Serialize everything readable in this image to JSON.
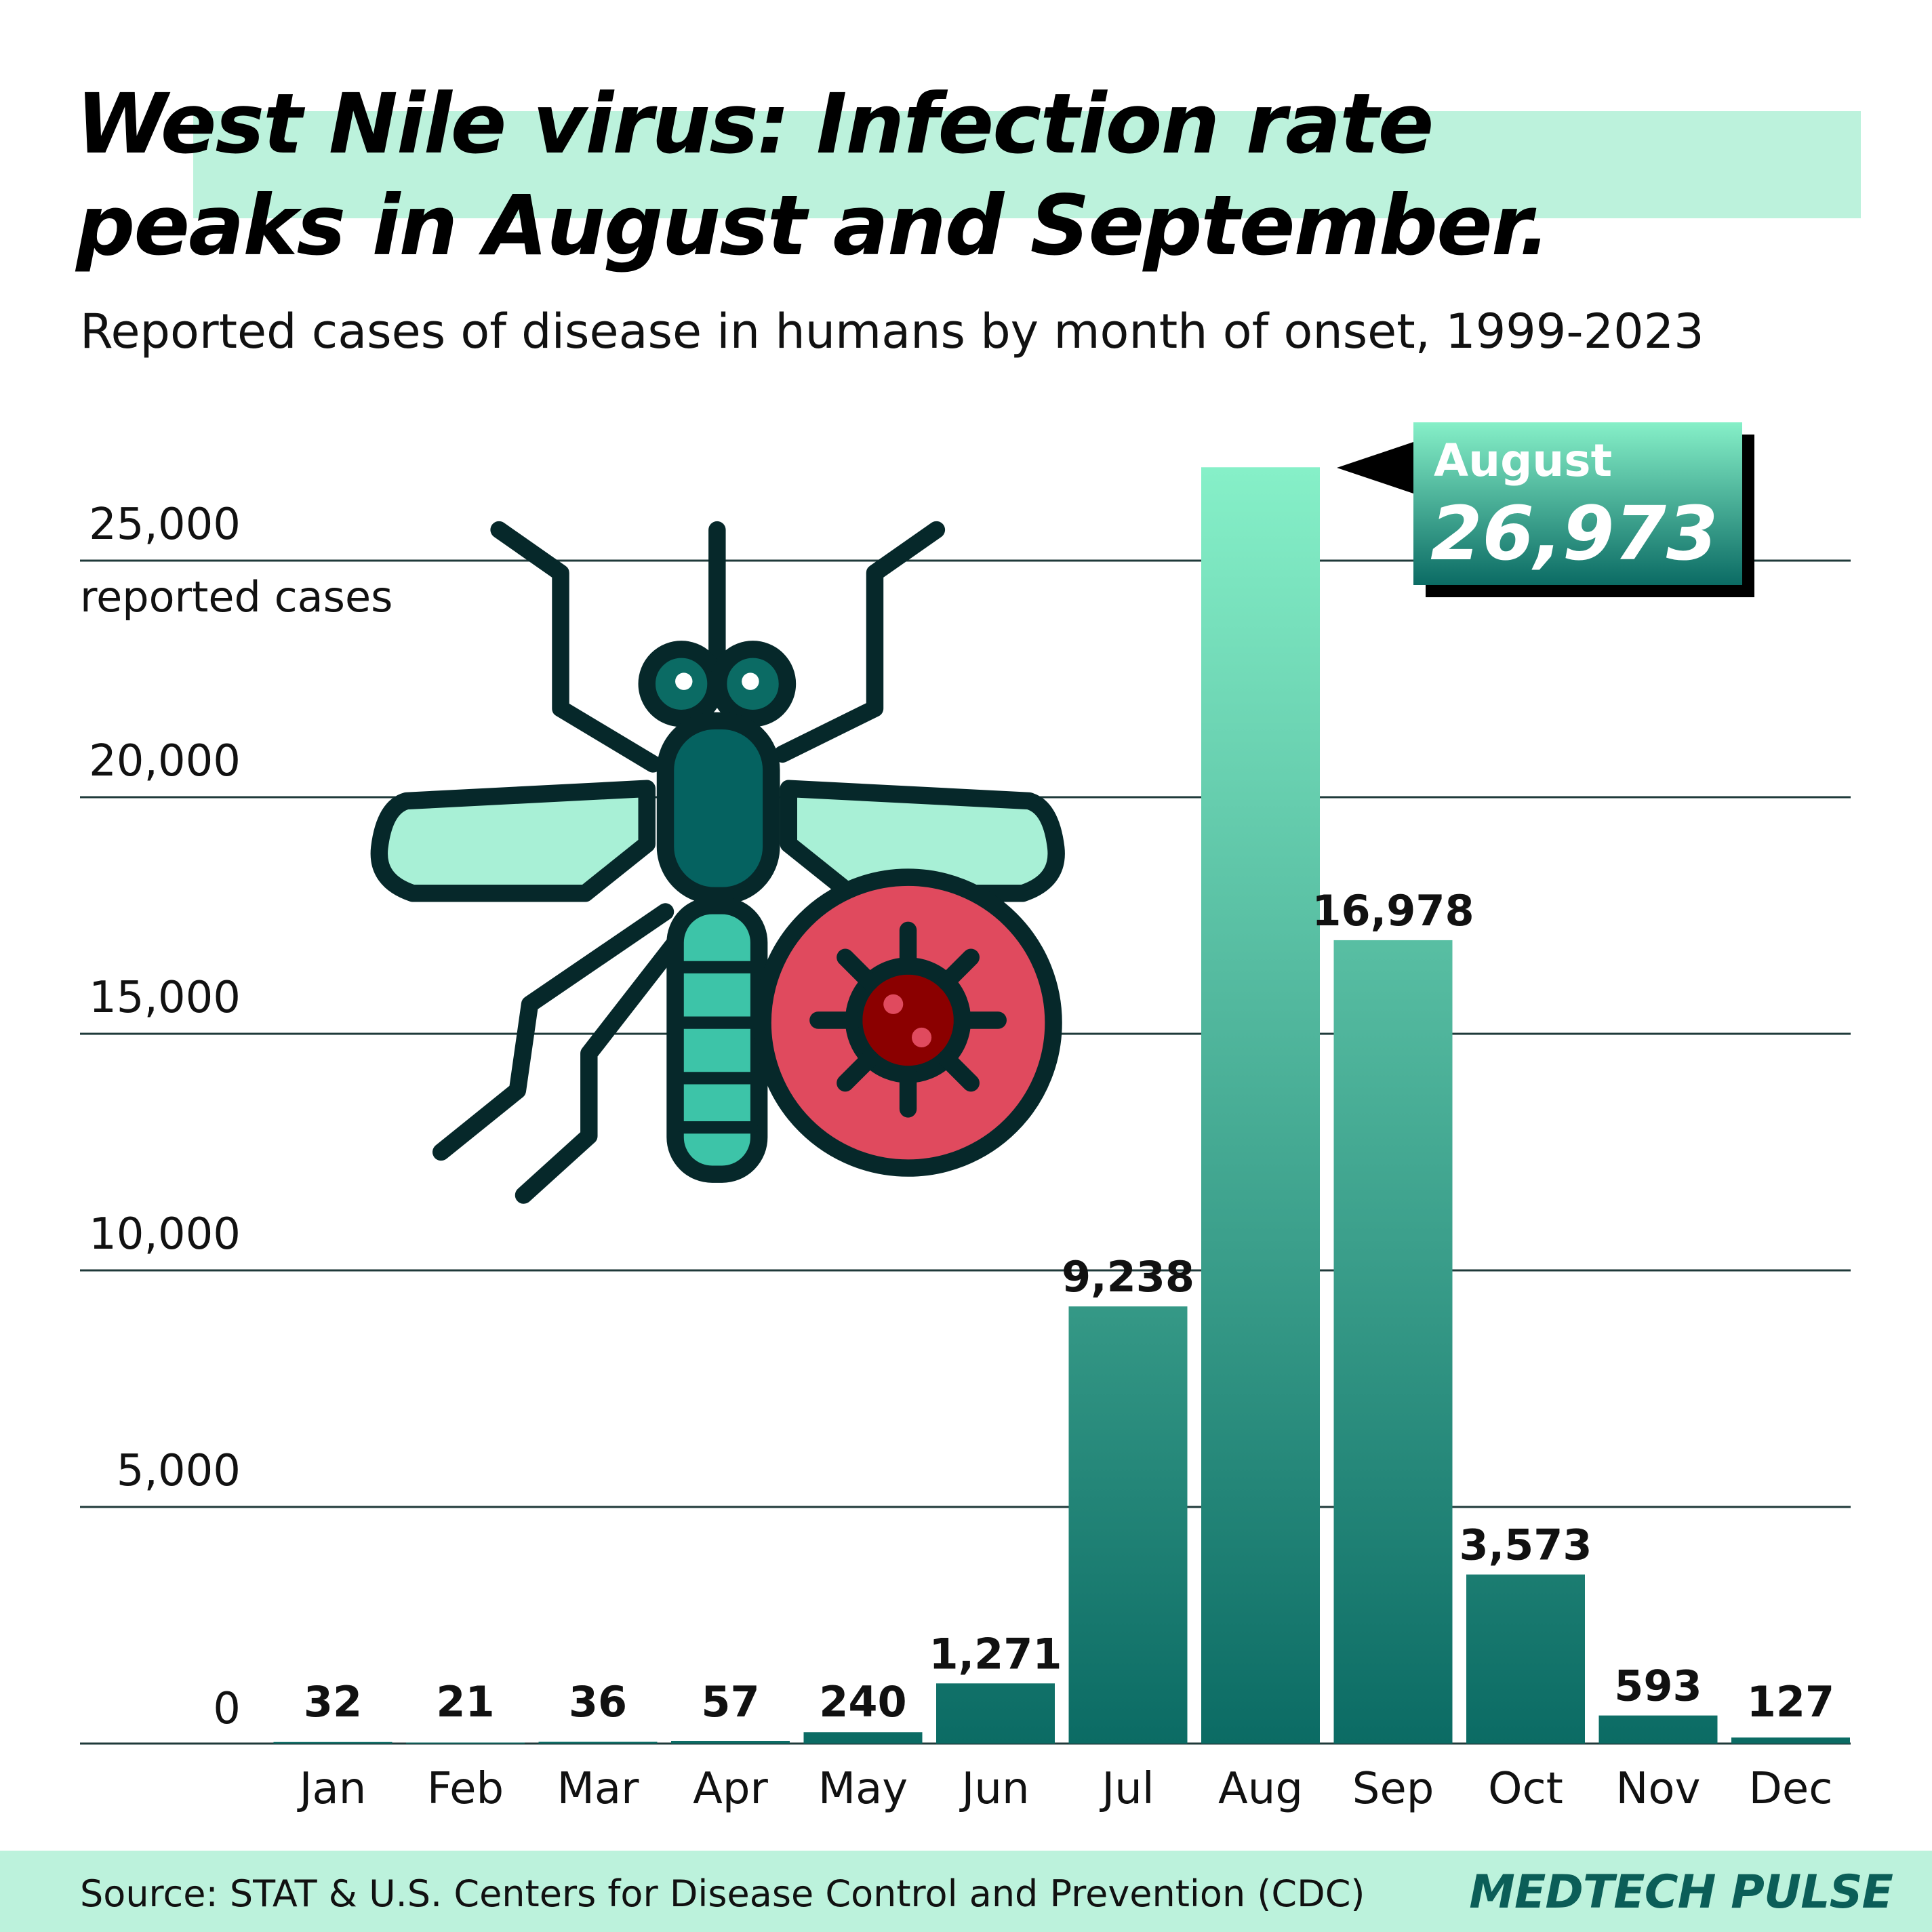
{
  "header": {
    "title_line1": "West Nile virus: Infection rate",
    "title_line2": "peaks in August and September.",
    "subtitle": "Reported cases of disease in humans by month of onset, 1999-2023"
  },
  "callout": {
    "month": "August",
    "value": "26,973"
  },
  "footer": {
    "source": "Source: STAT & U.S. Centers for Disease Control and Prevention (CDC)",
    "brand": "MEDTECH PULSE"
  },
  "colors": {
    "accent": "#bcf2dc",
    "bar_top": "#86f0c8",
    "bar_bottom": "#0b6b64",
    "virus": "#e04a5e",
    "outline": "#06282a"
  },
  "icons": [
    "mosquito-icon",
    "virus-icon"
  ],
  "chart_data": {
    "type": "bar",
    "title": "West Nile virus: Infection rate peaks in August and September.",
    "subtitle": "Reported cases of disease in humans by month of onset, 1999-2023",
    "ylabel": "reported cases",
    "xlabel": "",
    "categories": [
      "Jan",
      "Feb",
      "Mar",
      "Apr",
      "May",
      "Jun",
      "Jul",
      "Aug",
      "Sep",
      "Oct",
      "Nov",
      "Dec"
    ],
    "values": [
      32,
      21,
      36,
      57,
      240,
      1271,
      9238,
      26973,
      16978,
      3573,
      593,
      127
    ],
    "value_labels": [
      "32",
      "21",
      "36",
      "57",
      "240",
      "1,271",
      "9,238",
      "26,973",
      "16,978",
      "3,573",
      "593",
      "127"
    ],
    "yticks": [
      0,
      5000,
      10000,
      15000,
      20000,
      25000
    ],
    "ytick_labels": [
      "0",
      "5,000",
      "10,000",
      "15,000",
      "20,000",
      "25,000"
    ],
    "ylim": [
      0,
      27000
    ],
    "grid": true,
    "legend": "none"
  }
}
